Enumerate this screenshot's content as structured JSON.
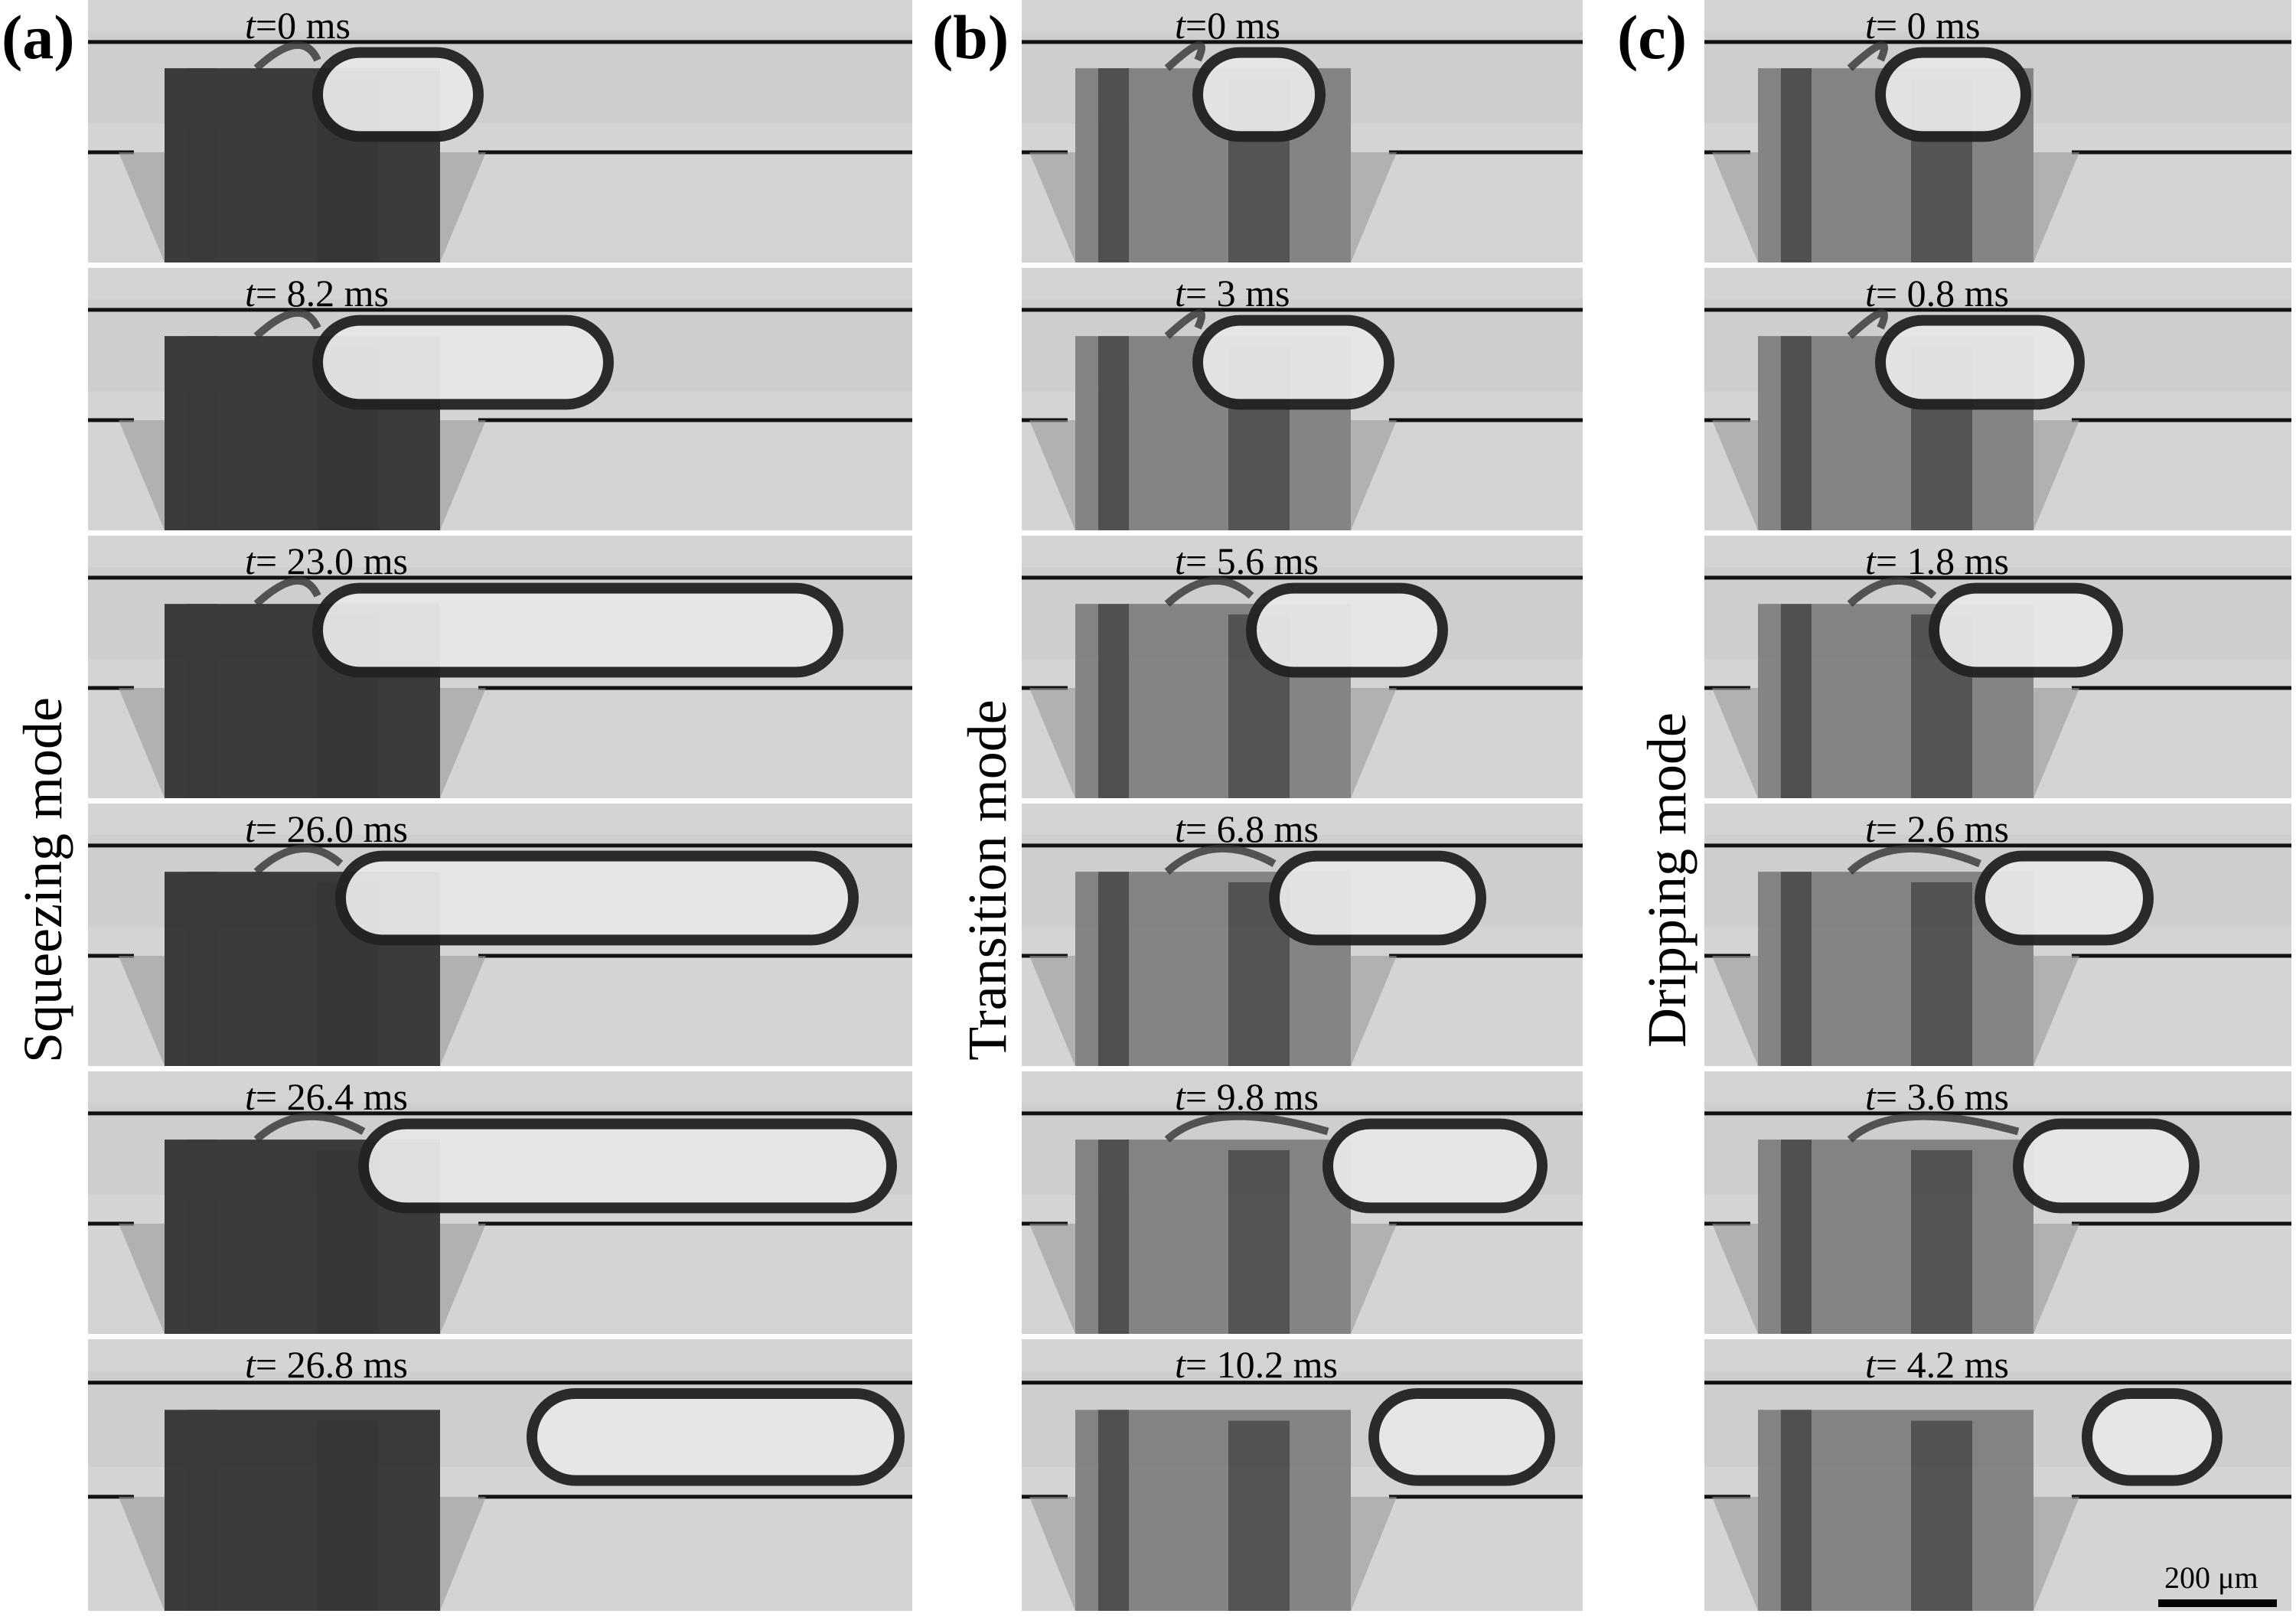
{
  "panels": [
    {
      "letter": "(a)",
      "mode": "Squeezing mode",
      "frames": [
        {
          "time": "0 ms",
          "prefix": "t",
          "sep": "="
        },
        {
          "time": " 8.2 ms",
          "prefix": "t",
          "sep": "="
        },
        {
          "time": " 23.0 ms",
          "prefix": "t",
          "sep": "="
        },
        {
          "time": " 26.0 ms",
          "prefix": "t",
          "sep": "="
        },
        {
          "time": " 26.4 ms",
          "prefix": "t",
          "sep": "="
        },
        {
          "time": " 26.8 ms",
          "prefix": "t",
          "sep": "="
        }
      ]
    },
    {
      "letter": "(b)",
      "mode": "Transition mode",
      "frames": [
        {
          "time": "0 ms",
          "prefix": "t",
          "sep": "="
        },
        {
          "time": " 3 ms",
          "prefix": "t",
          "sep": "="
        },
        {
          "time": " 5.6 ms",
          "prefix": "t",
          "sep": "="
        },
        {
          "time": " 6.8 ms",
          "prefix": "t",
          "sep": "="
        },
        {
          "time": " 9.8 ms",
          "prefix": "t",
          "sep": "="
        },
        {
          "time": " 10.2 ms",
          "prefix": "t",
          "sep": "="
        }
      ]
    },
    {
      "letter": "(c)",
      "mode": "Dripping mode",
      "frames": [
        {
          "time": " 0 ms",
          "prefix": "t",
          "sep": "="
        },
        {
          "time": " 0.8 ms",
          "prefix": "t",
          "sep": "="
        },
        {
          "time": " 1.8 ms",
          "prefix": "t",
          "sep": "="
        },
        {
          "time": " 2.6 ms",
          "prefix": "t",
          "sep": "="
        },
        {
          "time": " 3.6 ms",
          "prefix": "t",
          "sep": "="
        },
        {
          "time": " 4.2 ms",
          "prefix": "t",
          "sep": "="
        }
      ]
    }
  ],
  "scale_bar": {
    "label": "200 μm"
  },
  "colors": {
    "background": "#d6d6d6",
    "dark": "#1a1a1a",
    "line": "#111111"
  }
}
